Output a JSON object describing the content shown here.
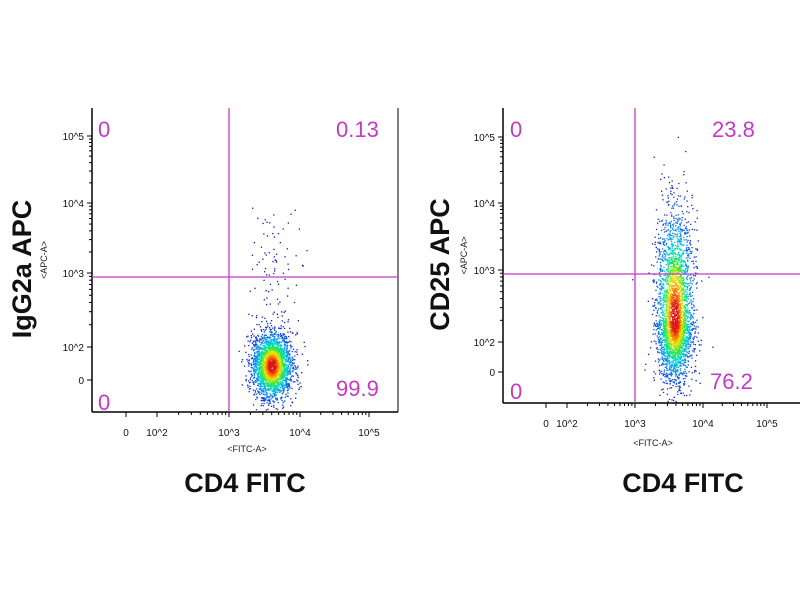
{
  "chart_data": [
    {
      "type": "scatter",
      "title": "",
      "xlabel": "CD4 FITC",
      "xlabel_channel": "<FITC-A>",
      "ylabel": "IgG2a APC",
      "ylabel_channel": "<APC-A>",
      "x_ticks": [
        "0",
        "10^2",
        "10^3",
        "10^4",
        "10^5"
      ],
      "y_ticks": [
        "0",
        "10^2",
        "10^3",
        "10^4",
        "10^5"
      ],
      "scale": "biexponential",
      "quadrant_gate": {
        "x": 900,
        "y": 900
      },
      "quadrants": {
        "upper_left": "0",
        "upper_right": "0.13",
        "lower_left": "0",
        "lower_right": "99.9"
      },
      "population": {
        "x_center_log10": 3.6,
        "y_center_log10": 1.75,
        "x_sd_log": 0.14,
        "y_sd_log": 0.22,
        "events": 2600,
        "tail_fraction": 0.03
      },
      "color_scale": "density (blue-green-yellow-red)"
    },
    {
      "type": "scatter",
      "title": "",
      "xlabel": "CD4 FITC",
      "xlabel_channel": "<FITC-A>",
      "ylabel": "CD25 APC",
      "ylabel_channel": "<APC-A>",
      "x_ticks": [
        "0",
        "10^2",
        "10^3",
        "10^4",
        "10^5"
      ],
      "y_ticks": [
        "0",
        "10^2",
        "10^3",
        "10^4",
        "10^5"
      ],
      "scale": "biexponential",
      "quadrant_gate": {
        "x": 900,
        "y": 900
      },
      "quadrants": {
        "upper_left": "0",
        "upper_right": "23.8",
        "lower_left": "0",
        "lower_right": "76.2"
      },
      "population": {
        "x_center_log10": 3.58,
        "y_center_log10": 2.3,
        "x_sd_log": 0.13,
        "y_sd_log": 0.6,
        "events": 3200,
        "tail_fraction": 0.0
      },
      "color_scale": "density (blue-green-yellow-red)"
    }
  ],
  "colors": {
    "gate": "#c23ac6",
    "quadrant_text": "#c23ac6"
  }
}
